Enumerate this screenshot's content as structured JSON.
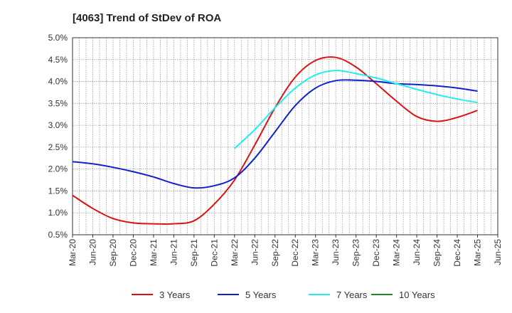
{
  "chart_data": {
    "type": "line",
    "title": "[4063]  Trend of StDev of ROA",
    "xlabel": "",
    "ylabel": "",
    "x_ticks": [
      "Mar-20",
      "Jun-20",
      "Sep-20",
      "Dec-20",
      "Mar-21",
      "Jun-21",
      "Sep-21",
      "Dec-21",
      "Mar-22",
      "Jun-22",
      "Sep-22",
      "Dec-22",
      "Mar-23",
      "Jun-23",
      "Sep-23",
      "Dec-23",
      "Mar-24",
      "Jun-24",
      "Sep-24",
      "Dec-24",
      "Mar-25",
      "Jun-25"
    ],
    "y_ticks": [
      "0.5%",
      "1.0%",
      "1.5%",
      "2.0%",
      "2.5%",
      "3.0%",
      "3.5%",
      "4.0%",
      "4.5%",
      "5.0%"
    ],
    "ylim": [
      0.5,
      5.0
    ],
    "grid": true,
    "legend_position": "bottom",
    "series": [
      {
        "name": "3 Years",
        "color": "#dd1111",
        "x": [
          "Mar-20",
          "Jun-20",
          "Sep-20",
          "Dec-20",
          "Mar-21",
          "Jun-21",
          "Sep-21",
          "Dec-21",
          "Mar-22",
          "Jun-22",
          "Sep-22",
          "Dec-22",
          "Mar-23",
          "Jun-23",
          "Sep-23",
          "Dec-23",
          "Mar-24",
          "Jun-24",
          "Sep-24",
          "Dec-24",
          "Mar-25"
        ],
        "values": [
          1.4,
          1.1,
          0.87,
          0.77,
          0.75,
          0.75,
          0.82,
          1.2,
          1.75,
          2.55,
          3.4,
          4.1,
          4.48,
          4.55,
          4.33,
          3.95,
          3.55,
          3.2,
          3.09,
          3.18,
          3.34
        ]
      },
      {
        "name": "5 Years",
        "color": "#1122cc",
        "x": [
          "Mar-20",
          "Jun-20",
          "Sep-20",
          "Dec-20",
          "Mar-21",
          "Jun-21",
          "Sep-21",
          "Dec-21",
          "Mar-22",
          "Jun-22",
          "Sep-22",
          "Dec-22",
          "Mar-23",
          "Jun-23",
          "Sep-23",
          "Dec-23",
          "Mar-24",
          "Jun-24",
          "Sep-24",
          "Dec-24",
          "Mar-25"
        ],
        "values": [
          2.17,
          2.12,
          2.04,
          1.94,
          1.82,
          1.67,
          1.57,
          1.62,
          1.8,
          2.25,
          2.85,
          3.45,
          3.85,
          4.02,
          4.03,
          4.0,
          3.95,
          3.93,
          3.9,
          3.85,
          3.78
        ]
      },
      {
        "name": "7 Years",
        "color": "#22eeee",
        "x": [
          "Mar-22",
          "Jun-22",
          "Sep-22",
          "Dec-22",
          "Mar-23",
          "Jun-23",
          "Sep-23",
          "Dec-23",
          "Mar-24",
          "Jun-24",
          "Sep-24",
          "Dec-24",
          "Mar-25"
        ],
        "values": [
          2.47,
          2.9,
          3.4,
          3.85,
          4.15,
          4.25,
          4.18,
          4.08,
          3.95,
          3.82,
          3.7,
          3.6,
          3.52
        ]
      },
      {
        "name": "10 Years",
        "color": "#228822",
        "x": [],
        "values": []
      }
    ]
  }
}
